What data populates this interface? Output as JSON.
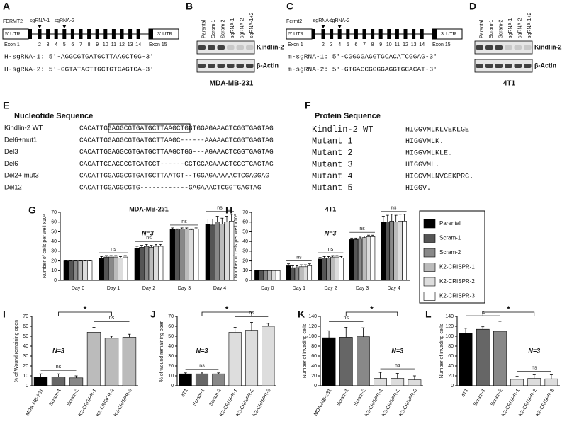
{
  "gene_maps": [
    {
      "label": "A",
      "gene": "FERMT2",
      "guides": [
        "sgRNA-1",
        "sgRNA-2"
      ],
      "utr5": "5' UTR",
      "utr3": "3' UTR",
      "exons": [
        "2",
        "3",
        "4",
        "5",
        "6",
        "7",
        "8",
        "9",
        "10",
        "11",
        "12",
        "13",
        "14"
      ],
      "first_exon": "Exon 1",
      "last_exon": "Exon 15",
      "sequences": [
        "H-sgRNA-1: 5'-AGGCGTGATGCTTAAGCTGG-3'",
        "H-sgRNA-2: 5'-GGTATACTTGCTGTCAGTCA-3'"
      ]
    },
    {
      "label": "C",
      "gene": "Fermt2",
      "guides": [
        "sgRNA-1",
        "sgRNA-2"
      ],
      "utr5": "5' UTR",
      "utr3": "3' UTR",
      "exons": [
        "2",
        "3",
        "4",
        "5",
        "6",
        "7",
        "8",
        "9",
        "10",
        "11",
        "12",
        "13",
        "14"
      ],
      "first_exon": "Exon 1",
      "last_exon": "Exon 15",
      "sequences": [
        "m-sgRNA-1: 5'-CGGGGAGGTGCACATCGGAG-3'",
        "m-sgRNA-2: 5'-GTGACCGGGGAGGTGCACAT-3'"
      ]
    }
  ],
  "blots": [
    {
      "label": "B",
      "lanes": [
        "Parental",
        "Scram-1",
        "Scram-2",
        "sgRNA-1",
        "sgRNA-2",
        "sgRNA-1+2"
      ],
      "rows": [
        "Kindlin-2",
        "β-Actin"
      ],
      "cell_line": "MDA-MB-231"
    },
    {
      "label": "D",
      "lanes": [
        "Parental",
        "Scram-1",
        "Scram-2",
        "sgRNA-1",
        "sgRNA-2",
        "sgRNA-1+2"
      ],
      "rows": [
        "Kindlin-2",
        "β-Actin"
      ],
      "cell_line": "4T1"
    }
  ],
  "nucleotides": {
    "label": "E",
    "title": "Nucleotide Sequence",
    "rows": [
      [
        "Kindlin-2 WT",
        "CACATTGGAGGCGTGATGCTTAAGCTGGTGGAGAAACTCGGTGAGTAG"
      ],
      [
        "Del6+mut1",
        "CACATTGGAGGCGTGATGCTTAAGC------AAAAACTCGGTGAGTAG"
      ],
      [
        "Del3",
        "CACATTGGAGGCGTGATGCTTAAGCTGG---AGAAACTCGGTGAGTAG"
      ],
      [
        "Del6",
        "CACATTGGAGGCGTGATGCT------GGTGGAGAAACTCGGTGAGTAG"
      ],
      [
        "Del2+ mut3",
        "CACATTGGAGGCGTGATGCTTAATGT--TGGAGAAAAACTCGAGGAG"
      ],
      [
        "Del12",
        "CACATTGGAGGCGTG------------GAGAAACTCGGTGAGTAG"
      ]
    ]
  },
  "proteins": {
    "label": "F",
    "title": "Protein Sequence",
    "rows": [
      [
        "Kindlin-2 WT",
        "HIGGVMLKLVEKLGE"
      ],
      [
        "Mutant 1",
        "HIGGVMLK."
      ],
      [
        "Mutant 2",
        "HIGGVMLKLE."
      ],
      [
        "Mutant 3",
        "HIGGVML."
      ],
      [
        "Mutant 4",
        "HIGGVMLNVGEKPRG."
      ],
      [
        "Mutant 5",
        "HIGGV."
      ]
    ]
  },
  "chart_data": [
    {
      "type": "grouped_bar",
      "label": "G",
      "title": "MDA-MB-231",
      "ylabel": "Number of cells per well x10³",
      "n_label": "N=3",
      "ns_labels": [
        "ns",
        "ns",
        "ns",
        "ns"
      ],
      "categories": [
        "Day 0",
        "Day 1",
        "Day 2",
        "Day 3",
        "Day 4"
      ],
      "ylim": [
        0,
        70
      ],
      "yticks": [
        0,
        10,
        20,
        30,
        40,
        50,
        60,
        70
      ],
      "series": [
        {
          "name": "Parental",
          "color": "#000000",
          "values": [
            20,
            23,
            33,
            53,
            58
          ],
          "errors": [
            0.3,
            1.5,
            2,
            1,
            5
          ]
        },
        {
          "name": "Scram-1",
          "color": "#555555",
          "values": [
            20,
            24,
            34,
            52,
            57
          ],
          "errors": [
            0.3,
            1.5,
            2,
            1,
            6
          ]
        },
        {
          "name": "Scram-2",
          "color": "#888888",
          "values": [
            20,
            24,
            35,
            53,
            60
          ],
          "errors": [
            0.3,
            1.5,
            2,
            1,
            6
          ]
        },
        {
          "name": "K2-CRISPR-1",
          "color": "#bbbbbb",
          "values": [
            20,
            24,
            34,
            53,
            58
          ],
          "errors": [
            0.3,
            1.5,
            2,
            1,
            6
          ]
        },
        {
          "name": "K2-CRISPR-2",
          "color": "#dddddd",
          "values": [
            20,
            23,
            35,
            52,
            60
          ],
          "errors": [
            0.3,
            1.5,
            2,
            1,
            6
          ]
        },
        {
          "name": "K2-CRISPR-3",
          "color": "#ffffff",
          "values": [
            20,
            24,
            35,
            53,
            61
          ],
          "errors": [
            0.3,
            1.5,
            2,
            1,
            7
          ]
        }
      ]
    },
    {
      "type": "grouped_bar",
      "label": "H",
      "title": "4T1",
      "ylabel": "Number of cells per well x10³",
      "n_label": "N=3",
      "ns_labels": [
        "ns",
        "ns",
        "ns",
        "ns"
      ],
      "categories": [
        "Day 0",
        "Day 1",
        "Day 2",
        "Day 3",
        "Day 4"
      ],
      "ylim": [
        0,
        70
      ],
      "yticks": [
        0,
        10,
        20,
        30,
        40,
        50,
        60,
        70
      ],
      "series": [
        {
          "name": "Parental",
          "color": "#000000",
          "values": [
            10,
            15,
            22,
            42,
            60
          ],
          "errors": [
            0.3,
            2,
            1.5,
            1.5,
            6
          ]
        },
        {
          "name": "Scram-1",
          "color": "#555555",
          "values": [
            10,
            13,
            23,
            42,
            60
          ],
          "errors": [
            0.3,
            2,
            1.5,
            1.5,
            7
          ]
        },
        {
          "name": "Scram-2",
          "color": "#888888",
          "values": [
            10,
            13,
            23,
            43,
            61
          ],
          "errors": [
            0.3,
            2,
            1.5,
            1.5,
            7
          ]
        },
        {
          "name": "K2-CRISPR-1",
          "color": "#bbbbbb",
          "values": [
            10,
            14,
            24,
            44,
            60
          ],
          "errors": [
            0.3,
            2,
            1.5,
            1.5,
            7
          ]
        },
        {
          "name": "K2-CRISPR-2",
          "color": "#dddddd",
          "values": [
            10,
            14,
            24,
            45,
            61
          ],
          "errors": [
            0.3,
            2,
            1.5,
            1.5,
            7
          ]
        },
        {
          "name": "K2-CRISPR-3",
          "color": "#ffffff",
          "values": [
            10,
            15,
            23,
            45,
            61
          ],
          "errors": [
            0.3,
            2,
            1.5,
            1.5,
            7
          ]
        }
      ]
    },
    {
      "type": "bar",
      "label": "I",
      "ylabel": "% of Wound remaining open",
      "n_label": "N=3",
      "ns_labels": [
        "ns",
        "ns"
      ],
      "star": "*",
      "categories": [
        "MDA-MB-231",
        "Scram-1",
        "Scram-2",
        "K2-CRISPR-1",
        "K2-CRISPR-2",
        "K2-CRISPR-3"
      ],
      "values": [
        9,
        9,
        8,
        54,
        48,
        49
      ],
      "errors": [
        3,
        3,
        2,
        5,
        2,
        3
      ],
      "colors": [
        "#000000",
        "#666666",
        "#888888",
        "#bbbbbb",
        "#bbbbbb",
        "#bbbbbb"
      ],
      "ylim": [
        0,
        70
      ],
      "yticks": [
        0,
        10,
        20,
        30,
        40,
        50,
        60,
        70
      ]
    },
    {
      "type": "bar",
      "label": "J",
      "ylabel": "% of wound remaining open",
      "n_label": "N=3",
      "ns_labels": [
        "ns",
        "ns"
      ],
      "star": "*",
      "categories": [
        "4T1",
        "Scram-1",
        "Scram-2",
        "K2-CRISPR-1",
        "K2-CRISPR-2",
        "K2-CRISPR-3"
      ],
      "values": [
        12,
        12,
        12,
        54,
        56,
        60
      ],
      "errors": [
        1,
        1,
        1,
        5,
        8,
        3
      ],
      "colors": [
        "#000000",
        "#666666",
        "#888888",
        "#dddddd",
        "#dddddd",
        "#dddddd"
      ],
      "ylim": [
        0,
        70
      ],
      "yticks": [
        0,
        10,
        20,
        30,
        40,
        50,
        60,
        70
      ]
    },
    {
      "type": "bar",
      "label": "K",
      "ylabel": "Number of invading cells",
      "n_label": "N=3",
      "ns_labels": [
        "ns",
        "ns"
      ],
      "star": "*",
      "categories": [
        "MDA-MB-231",
        "Scram-1",
        "Scram-2",
        "K2-CRISPR-1",
        "K2-CRISPR-2",
        "K2-CRISPR-3"
      ],
      "values": [
        97,
        98,
        99,
        15,
        15,
        12
      ],
      "errors": [
        14,
        20,
        18,
        12,
        10,
        8
      ],
      "colors": [
        "#000000",
        "#666666",
        "#888888",
        "#dddddd",
        "#dddddd",
        "#dddddd"
      ],
      "ylim": [
        0,
        140
      ],
      "yticks": [
        0,
        20,
        40,
        60,
        80,
        100,
        120,
        140
      ]
    },
    {
      "type": "bar",
      "label": "L",
      "ylabel": "Number of invading cells",
      "n_label": "N=3",
      "ns_labels": [
        "ns",
        "ns"
      ],
      "star": "*",
      "categories": [
        "4T1",
        "Scram-1",
        "Scram-2",
        "K2-CRISPR-1",
        "K2-CRISPR-2",
        "K2-CRISPR-3"
      ],
      "values": [
        106,
        114,
        110,
        13,
        15,
        14
      ],
      "errors": [
        10,
        5,
        20,
        6,
        7,
        8
      ],
      "colors": [
        "#000000",
        "#666666",
        "#888888",
        "#dddddd",
        "#dddddd",
        "#dddddd"
      ],
      "ylim": [
        0,
        140
      ],
      "yticks": [
        0,
        20,
        40,
        60,
        80,
        100,
        120,
        140
      ]
    }
  ]
}
